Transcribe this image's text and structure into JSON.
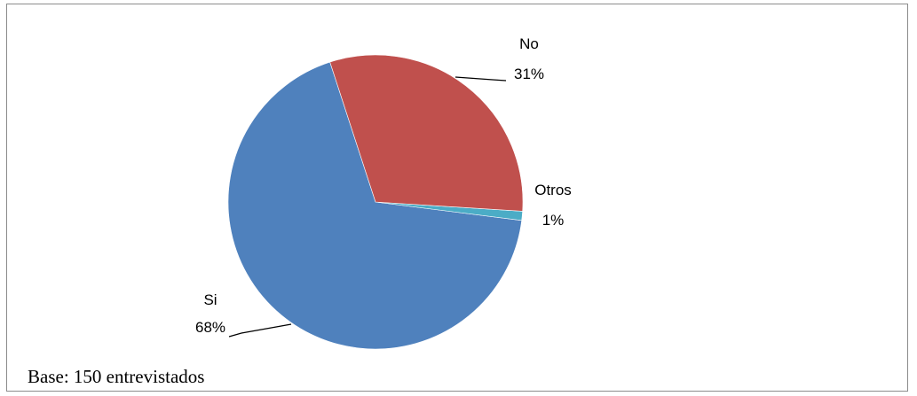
{
  "chart_data": {
    "type": "pie",
    "slices": [
      {
        "label": "Si",
        "value": 68,
        "percent_label": "68%",
        "color": "#4F81BD"
      },
      {
        "label": "No",
        "value": 31,
        "percent_label": "31%",
        "color": "#C0504D"
      },
      {
        "label": "Otros",
        "value": 1,
        "percent_label": "1%",
        "color": "#4BACC6"
      }
    ],
    "legend": false
  },
  "footnote": "Base: 150 entrevistados"
}
